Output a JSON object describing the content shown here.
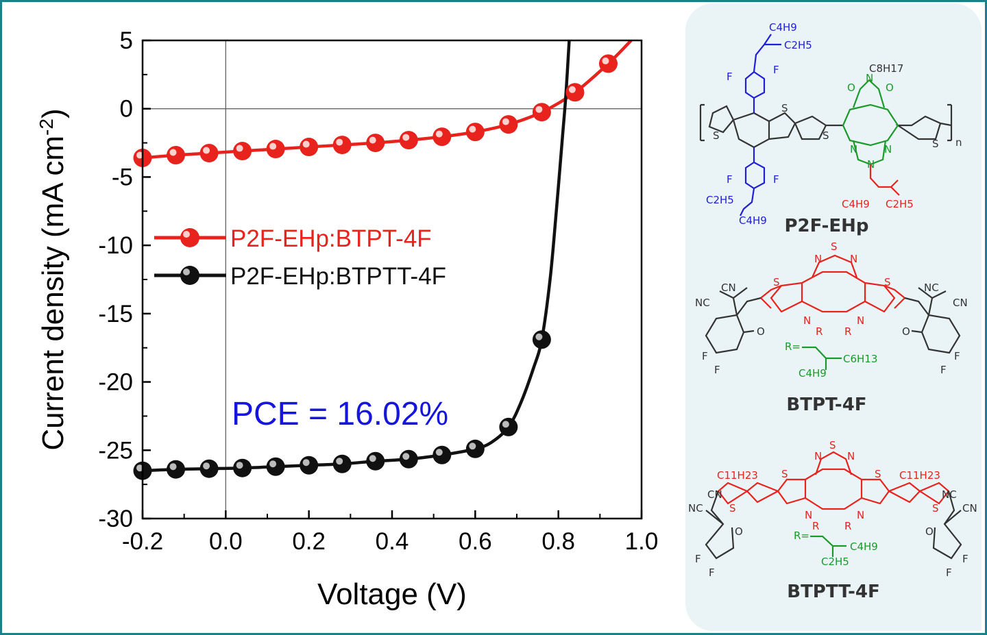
{
  "colors": {
    "frame": "#1d7f8c",
    "panel_bg": "#eaf4f6",
    "red": "#e8221c",
    "black": "#111111",
    "blue": "#1f1fd6",
    "green": "#1a9a2a",
    "pce": "#1515dd"
  },
  "chart_data": {
    "type": "line",
    "xlabel": "Voltage (V)",
    "ylabel": "Current density (mA cm-2)",
    "xlim": [
      -0.2,
      1.0
    ],
    "ylim": [
      -30,
      5
    ],
    "xticks": [
      "-0.2",
      "0.0",
      "0.2",
      "0.4",
      "0.6",
      "0.8",
      "1.0"
    ],
    "yticks": [
      "5",
      "0",
      "-5",
      "-10",
      "-15",
      "-20",
      "-25",
      "-30"
    ],
    "zero_lines": true,
    "legend_position": "center-left",
    "annotation": "PCE = 16.02%",
    "series": [
      {
        "name": "P2F-EHp:BTPT-4F",
        "color": "#e8221c",
        "markers": [
          [
            -0.2,
            -3.6
          ],
          [
            -0.12,
            -3.4
          ],
          [
            -0.04,
            -3.25
          ],
          [
            0.04,
            -3.1
          ],
          [
            0.12,
            -2.95
          ],
          [
            0.2,
            -2.8
          ],
          [
            0.28,
            -2.65
          ],
          [
            0.36,
            -2.5
          ],
          [
            0.44,
            -2.3
          ],
          [
            0.52,
            -2.05
          ],
          [
            0.6,
            -1.7
          ],
          [
            0.68,
            -1.15
          ],
          [
            0.76,
            -0.25
          ],
          [
            0.84,
            1.2
          ],
          [
            0.92,
            3.3
          ]
        ],
        "curve": [
          [
            -0.2,
            -3.6
          ],
          [
            -0.12,
            -3.4
          ],
          [
            -0.04,
            -3.25
          ],
          [
            0.04,
            -3.1
          ],
          [
            0.12,
            -2.95
          ],
          [
            0.2,
            -2.8
          ],
          [
            0.28,
            -2.65
          ],
          [
            0.36,
            -2.5
          ],
          [
            0.44,
            -2.3
          ],
          [
            0.52,
            -2.05
          ],
          [
            0.6,
            -1.7
          ],
          [
            0.68,
            -1.15
          ],
          [
            0.76,
            -0.25
          ],
          [
            0.84,
            1.2
          ],
          [
            0.92,
            3.3
          ],
          [
            0.975,
            5.0
          ]
        ]
      },
      {
        "name": "P2F-EHp:BTPTT-4F",
        "color": "#111111",
        "markers": [
          [
            -0.2,
            -26.5
          ],
          [
            -0.12,
            -26.4
          ],
          [
            -0.04,
            -26.35
          ],
          [
            0.04,
            -26.3
          ],
          [
            0.12,
            -26.2
          ],
          [
            0.2,
            -26.1
          ],
          [
            0.28,
            -26.0
          ],
          [
            0.36,
            -25.8
          ],
          [
            0.44,
            -25.65
          ],
          [
            0.52,
            -25.35
          ],
          [
            0.6,
            -24.9
          ],
          [
            0.68,
            -23.3
          ],
          [
            0.76,
            -16.9
          ]
        ],
        "curve": [
          [
            -0.2,
            -26.5
          ],
          [
            -0.12,
            -26.4
          ],
          [
            -0.04,
            -26.35
          ],
          [
            0.04,
            -26.3
          ],
          [
            0.12,
            -26.2
          ],
          [
            0.2,
            -26.1
          ],
          [
            0.28,
            -26.0
          ],
          [
            0.36,
            -25.8
          ],
          [
            0.44,
            -25.65
          ],
          [
            0.52,
            -25.35
          ],
          [
            0.6,
            -24.9
          ],
          [
            0.64,
            -24.4
          ],
          [
            0.68,
            -23.3
          ],
          [
            0.71,
            -21.5
          ],
          [
            0.74,
            -19.0
          ],
          [
            0.76,
            -16.9
          ],
          [
            0.78,
            -12.5
          ],
          [
            0.795,
            -7.5
          ],
          [
            0.81,
            -2.0
          ],
          [
            0.818,
            1.0
          ],
          [
            0.826,
            5.0
          ]
        ]
      }
    ]
  },
  "molecules": {
    "p2f": {
      "name": "P2F-EHp",
      "c4h9_top": "C4H9",
      "c2h5_top": "C2H5",
      "f1": "F",
      "f2": "F",
      "f3": "F",
      "f4": "F",
      "c8h17": "C8H17",
      "o1": "O",
      "o2": "O",
      "n_imide": "N",
      "s1": "S",
      "s2": "S",
      "s3": "S",
      "s4": "S",
      "n1": "N",
      "n2": "N",
      "n3": "N",
      "n_sub": "n",
      "c2h5_bl": "C2H5",
      "c4h9_bl": "C4H9",
      "c4h9_br": "C4H9",
      "c2h5_br": "C2H5"
    },
    "btpt": {
      "name": "BTPT-4F",
      "s_top": "S",
      "n_t1": "N",
      "n_t2": "N",
      "s_l": "S",
      "s_r": "S",
      "n_l": "N",
      "n_r": "N",
      "r_l": "R",
      "r_r": "R",
      "cn1": "CN",
      "cn2": "NC",
      "cn3": "NC",
      "cn4": "CN",
      "o_l": "O",
      "o_r": "O",
      "f1": "F",
      "f2": "F",
      "f3": "F",
      "f4": "F",
      "r_def": "R=",
      "c6h13": "C6H13",
      "c4h9": "C4H9"
    },
    "btptt": {
      "name": "BTPTT-4F",
      "s_top": "S",
      "n_t1": "N",
      "n_t2": "N",
      "s1": "S",
      "s2": "S",
      "s3": "S",
      "s4": "S",
      "n_l": "N",
      "n_r": "N",
      "r_l": "R",
      "r_r": "R",
      "c11_l": "C11H23",
      "c11_r": "C11H23",
      "cn1": "CN",
      "cn2": "NC",
      "cn3": "NC",
      "cn4": "CN",
      "o_l": "O",
      "o_r": "O",
      "f1": "F",
      "f2": "F",
      "f3": "F",
      "f4": "F",
      "r_def": "R=",
      "c4h9": "C4H9",
      "c2h5": "C2H5"
    }
  }
}
